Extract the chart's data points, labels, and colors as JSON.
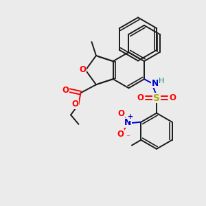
{
  "background_color": "#ebebeb",
  "figsize": [
    3.0,
    3.0
  ],
  "dpi": 100,
  "bond_color": "#1a1a1a",
  "oxygen_color": "#ff0000",
  "nitrogen_color": "#0000cc",
  "sulfur_color": "#aaaa00",
  "hydrogen_color": "#008888",
  "bond_lw": 1.4,
  "xlim": [
    0,
    10
  ],
  "ylim": [
    0,
    10
  ]
}
